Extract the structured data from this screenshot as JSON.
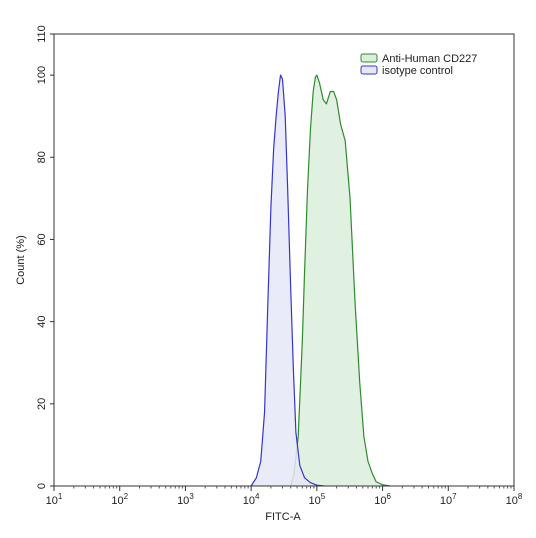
{
  "chart_data": {
    "type": "area",
    "title": "",
    "xlabel": "FITC-A",
    "ylabel": "Count  (%)",
    "xscale": "log",
    "xlim": [
      10,
      100000000
    ],
    "ylim": [
      0,
      110
    ],
    "grid": false,
    "legend_position": "top-right",
    "y_ticks": [
      0,
      20,
      40,
      60,
      80,
      100,
      110
    ],
    "x_ticks": [
      {
        "value": 10,
        "base": "10",
        "exp": "1"
      },
      {
        "value": 100,
        "base": "10",
        "exp": "2"
      },
      {
        "value": 1000,
        "base": "10",
        "exp": "3"
      },
      {
        "value": 10000,
        "base": "10",
        "exp": "4"
      },
      {
        "value": 100000,
        "base": "10",
        "exp": "5"
      },
      {
        "value": 1000000,
        "base": "10",
        "exp": "6"
      },
      {
        "value": 10000000,
        "base": "10",
        "exp": "7"
      },
      {
        "value": 100000000,
        "base": "10",
        "exp": "8"
      }
    ],
    "series": [
      {
        "name": "Anti-Human CD227",
        "color": "#2e8b2e",
        "fill": "#dcefdc",
        "x": [
          40000,
          45000,
          52000,
          60000,
          65000,
          72000,
          80000,
          88000,
          95000,
          100000,
          110000,
          125000,
          140000,
          160000,
          180000,
          200000,
          230000,
          270000,
          320000,
          380000,
          450000,
          520000,
          600000,
          700000,
          800000,
          1000000,
          1300000
        ],
        "y": [
          0,
          3,
          12,
          35,
          52,
          72,
          87,
          96,
          99.5,
          100,
          98,
          94,
          93,
          96,
          96,
          94,
          88,
          84,
          70,
          45,
          25,
          12,
          6,
          3,
          1,
          0.3,
          0
        ]
      },
      {
        "name": "isotype control",
        "color": "#3535cc",
        "fill": "#e6e8f7",
        "x": [
          10000,
          12000,
          14000,
          16000,
          18000,
          20000,
          22000,
          24000,
          26000,
          28000,
          30000,
          33000,
          36000,
          40000,
          44000,
          48000,
          55000,
          65000,
          80000,
          100000,
          130000
        ],
        "y": [
          0,
          2,
          6,
          18,
          45,
          68,
          82,
          90,
          96,
          100,
          99,
          90,
          72,
          48,
          28,
          13,
          5,
          2,
          0.8,
          0.2,
          0
        ]
      }
    ]
  }
}
